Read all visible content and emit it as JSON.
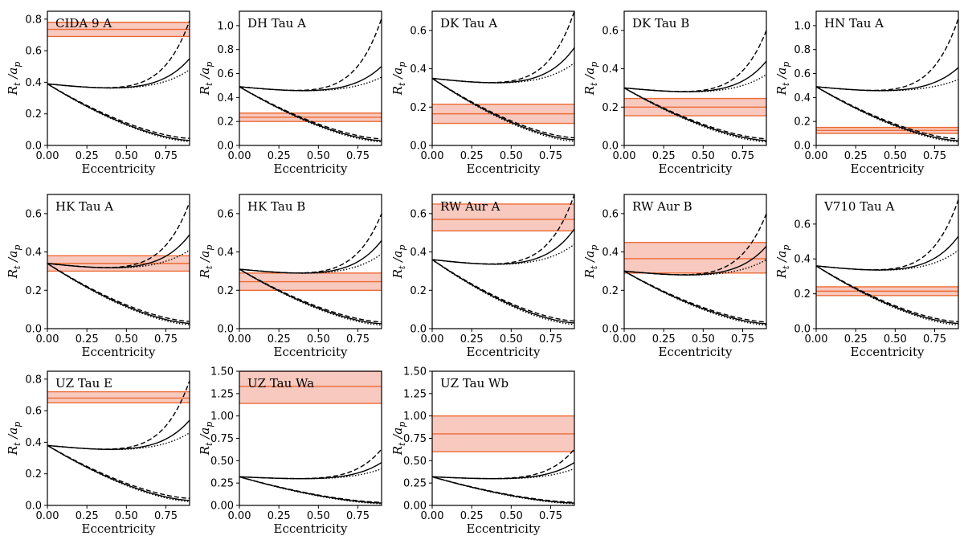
{
  "figure": {
    "xlabel": "Eccentricity",
    "ylabel_main": "R",
    "ylabel_sub1": "t",
    "ylabel_mid": " /a",
    "ylabel_sub2": "p",
    "band_color": "#f7c9bf",
    "band_edge_color": "#ee6a33",
    "curve_color": "#000000"
  },
  "chart_data": [
    {
      "type": "line",
      "title": "CIDA 9 A",
      "xlim": [
        0,
        0.9
      ],
      "ylim": [
        0,
        0.85
      ],
      "xticks": [
        0,
        0.25,
        0.5,
        0.75
      ],
      "xtick_labels": [
        "0.00",
        "0.25",
        "0.50",
        "0.75"
      ],
      "yticks": [
        0,
        0.2,
        0.4,
        0.6,
        0.8
      ],
      "ytick_labels": [
        "0.0",
        "0.2",
        "0.4",
        "0.6",
        "0.8"
      ],
      "r0": 0.39,
      "outer": {
        "dashed": 0.79,
        "solid": 0.55,
        "dotted": 0.48
      },
      "inner": {
        "dashed": 0.045,
        "solid": 0.032,
        "dotted": 0.025
      },
      "band": {
        "lo": 0.69,
        "mid": 0.735,
        "hi": 0.78
      },
      "xlabel": "Eccentricity",
      "ylabel": "R_t /a_p"
    },
    {
      "type": "line",
      "title": "DH Tau A",
      "xlim": [
        0,
        0.9
      ],
      "ylim": [
        0,
        1.12
      ],
      "xticks": [
        0,
        0.25,
        0.5,
        0.75
      ],
      "xtick_labels": [
        "0.00",
        "0.25",
        "0.50",
        "0.75"
      ],
      "yticks": [
        0,
        0.2,
        0.4,
        0.6,
        0.8,
        1.0
      ],
      "ytick_labels": [
        "0.0",
        "0.2",
        "0.4",
        "0.6",
        "0.8",
        "1.0"
      ],
      "r0": 0.49,
      "outer": {
        "dashed": 1.06,
        "solid": 0.66,
        "dotted": 0.57
      },
      "inner": {
        "dashed": 0.055,
        "solid": 0.04,
        "dotted": 0.03
      },
      "band": {
        "lo": 0.2,
        "mid": 0.235,
        "hi": 0.27
      },
      "xlabel": "Eccentricity",
      "ylabel": "R_t /a_p"
    },
    {
      "type": "line",
      "title": "DK Tau A",
      "xlim": [
        0,
        0.9
      ],
      "ylim": [
        0,
        0.7
      ],
      "xticks": [
        0,
        0.25,
        0.5,
        0.75
      ],
      "xtick_labels": [
        "0.00",
        "0.25",
        "0.50",
        "0.75"
      ],
      "yticks": [
        0,
        0.2,
        0.4,
        0.6
      ],
      "ytick_labels": [
        "0.0",
        "0.2",
        "0.4",
        "0.6"
      ],
      "r0": 0.35,
      "outer": {
        "dashed": 0.7,
        "solid": 0.51,
        "dotted": 0.43
      },
      "inner": {
        "dashed": 0.04,
        "solid": 0.03,
        "dotted": 0.022
      },
      "band": {
        "lo": 0.115,
        "mid": 0.165,
        "hi": 0.215
      },
      "xlabel": "Eccentricity",
      "ylabel": "R_t /a_p"
    },
    {
      "type": "line",
      "title": "DK Tau B",
      "xlim": [
        0,
        0.9
      ],
      "ylim": [
        0,
        0.7
      ],
      "xticks": [
        0,
        0.25,
        0.5,
        0.75
      ],
      "xtick_labels": [
        "0.00",
        "0.25",
        "0.50",
        "0.75"
      ],
      "yticks": [
        0,
        0.2,
        0.4,
        0.6
      ],
      "ytick_labels": [
        "0.0",
        "0.2",
        "0.4",
        "0.6"
      ],
      "r0": 0.3,
      "outer": {
        "dashed": 0.6,
        "solid": 0.44,
        "dotted": 0.37
      },
      "inner": {
        "dashed": 0.035,
        "solid": 0.026,
        "dotted": 0.019
      },
      "band": {
        "lo": 0.155,
        "mid": 0.2,
        "hi": 0.245
      },
      "xlabel": "Eccentricity",
      "ylabel": "R_t /a_p"
    },
    {
      "type": "line",
      "title": "HN Tau A",
      "xlim": [
        0,
        0.9
      ],
      "ylim": [
        0,
        1.12
      ],
      "xticks": [
        0,
        0.25,
        0.5,
        0.75
      ],
      "xtick_labels": [
        "0.00",
        "0.25",
        "0.50",
        "0.75"
      ],
      "yticks": [
        0,
        0.2,
        0.4,
        0.6,
        0.8,
        1.0
      ],
      "ytick_labels": [
        "0.0",
        "0.2",
        "0.4",
        "0.6",
        "0.8",
        "1.0"
      ],
      "r0": 0.49,
      "outer": {
        "dashed": 1.06,
        "solid": 0.65,
        "dotted": 0.55
      },
      "inner": {
        "dashed": 0.055,
        "solid": 0.04,
        "dotted": 0.03
      },
      "band": {
        "lo": 0.1,
        "mid": 0.125,
        "hi": 0.15
      },
      "xlabel": "Eccentricity",
      "ylabel": "R_t /a_p"
    },
    {
      "type": "line",
      "title": "HK Tau A",
      "xlim": [
        0,
        0.9
      ],
      "ylim": [
        0,
        0.7
      ],
      "xticks": [
        0,
        0.25,
        0.5,
        0.75
      ],
      "xtick_labels": [
        "0.00",
        "0.25",
        "0.50",
        "0.75"
      ],
      "yticks": [
        0,
        0.2,
        0.4,
        0.6
      ],
      "ytick_labels": [
        "0.0",
        "0.2",
        "0.4",
        "0.6"
      ],
      "r0": 0.34,
      "outer": {
        "dashed": 0.66,
        "solid": 0.49,
        "dotted": 0.41
      },
      "inner": {
        "dashed": 0.038,
        "solid": 0.028,
        "dotted": 0.021
      },
      "band": {
        "lo": 0.3,
        "mid": 0.34,
        "hi": 0.38
      },
      "xlabel": "Eccentricity",
      "ylabel": "R_t /a_p"
    },
    {
      "type": "line",
      "title": "HK Tau B",
      "xlim": [
        0,
        0.9
      ],
      "ylim": [
        0,
        0.7
      ],
      "xticks": [
        0,
        0.25,
        0.5,
        0.75
      ],
      "xtick_labels": [
        "0.00",
        "0.25",
        "0.50",
        "0.75"
      ],
      "yticks": [
        0,
        0.2,
        0.4,
        0.6
      ],
      "ytick_labels": [
        "0.0",
        "0.2",
        "0.4",
        "0.6"
      ],
      "r0": 0.31,
      "outer": {
        "dashed": 0.6,
        "solid": 0.46,
        "dotted": 0.39
      },
      "inner": {
        "dashed": 0.035,
        "solid": 0.026,
        "dotted": 0.019
      },
      "band": {
        "lo": 0.2,
        "mid": 0.245,
        "hi": 0.29
      },
      "xlabel": "Eccentricity",
      "ylabel": "R_t /a_p"
    },
    {
      "type": "line",
      "title": "RW Aur A",
      "xlim": [
        0,
        0.9
      ],
      "ylim": [
        0,
        0.7
      ],
      "xticks": [
        0,
        0.25,
        0.5,
        0.75
      ],
      "xtick_labels": [
        "0.00",
        "0.25",
        "0.50",
        "0.75"
      ],
      "yticks": [
        0,
        0.2,
        0.4,
        0.6
      ],
      "ytick_labels": [
        "0.0",
        "0.2",
        "0.4",
        "0.6"
      ],
      "r0": 0.36,
      "outer": {
        "dashed": 0.7,
        "solid": 0.52,
        "dotted": 0.44
      },
      "inner": {
        "dashed": 0.04,
        "solid": 0.03,
        "dotted": 0.022
      },
      "band": {
        "lo": 0.51,
        "mid": 0.57,
        "hi": 0.65
      },
      "xlabel": "Eccentricity",
      "ylabel": "R_t /a_p"
    },
    {
      "type": "line",
      "title": "RW Aur B",
      "xlim": [
        0,
        0.9
      ],
      "ylim": [
        0,
        0.7
      ],
      "xticks": [
        0,
        0.25,
        0.5,
        0.75
      ],
      "xtick_labels": [
        "0.00",
        "0.25",
        "0.50",
        "0.75"
      ],
      "yticks": [
        0,
        0.2,
        0.4,
        0.6
      ],
      "ytick_labels": [
        "0.0",
        "0.2",
        "0.4",
        "0.6"
      ],
      "r0": 0.3,
      "outer": {
        "dashed": 0.6,
        "solid": 0.43,
        "dotted": 0.36
      },
      "inner": {
        "dashed": 0.035,
        "solid": 0.026,
        "dotted": 0.019
      },
      "band": {
        "lo": 0.29,
        "mid": 0.365,
        "hi": 0.45
      },
      "xlabel": "Eccentricity",
      "ylabel": "R_t /a_p"
    },
    {
      "type": "line",
      "title": "V710 Tau A",
      "xlim": [
        0,
        0.9
      ],
      "ylim": [
        0,
        0.77
      ],
      "xticks": [
        0,
        0.25,
        0.5,
        0.75
      ],
      "xtick_labels": [
        "0.00",
        "0.25",
        "0.50",
        "0.75"
      ],
      "yticks": [
        0,
        0.2,
        0.4,
        0.6
      ],
      "ytick_labels": [
        "0.0",
        "0.2",
        "0.4",
        "0.6"
      ],
      "r0": 0.36,
      "outer": {
        "dashed": 0.74,
        "solid": 0.53,
        "dotted": 0.45
      },
      "inner": {
        "dashed": 0.04,
        "solid": 0.03,
        "dotted": 0.022
      },
      "band": {
        "lo": 0.19,
        "mid": 0.215,
        "hi": 0.24
      },
      "xlabel": "Eccentricity",
      "ylabel": "R_t /a_p"
    },
    {
      "type": "line",
      "title": "UZ Tau E",
      "xlim": [
        0,
        0.9
      ],
      "ylim": [
        0,
        0.85
      ],
      "xticks": [
        0,
        0.25,
        0.5,
        0.75
      ],
      "xtick_labels": [
        "0.00",
        "0.25",
        "0.50",
        "0.75"
      ],
      "yticks": [
        0,
        0.2,
        0.4,
        0.6,
        0.8
      ],
      "ytick_labels": [
        "0.0",
        "0.2",
        "0.4",
        "0.6",
        "0.8"
      ],
      "r0": 0.38,
      "outer": {
        "dashed": 0.79,
        "solid": 0.54,
        "dotted": 0.46
      },
      "inner": {
        "dashed": 0.045,
        "solid": 0.032,
        "dotted": 0.025
      },
      "band": {
        "lo": 0.65,
        "mid": 0.68,
        "hi": 0.72
      },
      "xlabel": "Eccentricity",
      "ylabel": "R_t /a_p"
    },
    {
      "type": "line",
      "title": "UZ Tau Wa",
      "xlim": [
        0,
        0.9
      ],
      "ylim": [
        0,
        1.5
      ],
      "xticks": [
        0,
        0.25,
        0.5,
        0.75
      ],
      "xtick_labels": [
        "0.00",
        "0.25",
        "0.50",
        "0.75"
      ],
      "yticks": [
        0,
        0.25,
        0.5,
        0.75,
        1.0,
        1.25,
        1.5
      ],
      "ytick_labels": [
        "0.00",
        "0.25",
        "0.50",
        "0.75",
        "1.00",
        "1.25",
        "1.50"
      ],
      "r0": 0.32,
      "outer": {
        "dashed": 0.63,
        "solid": 0.48,
        "dotted": 0.41
      },
      "inner": {
        "dashed": 0.035,
        "solid": 0.027,
        "dotted": 0.02
      },
      "band": {
        "lo": 1.14,
        "mid": 1.33,
        "hi": 1.5
      },
      "xlabel": "Eccentricity",
      "ylabel": "R_t /a_p"
    },
    {
      "type": "line",
      "title": "UZ Tau Wb",
      "xlim": [
        0,
        0.9
      ],
      "ylim": [
        0,
        1.5
      ],
      "xticks": [
        0,
        0.25,
        0.5,
        0.75
      ],
      "xtick_labels": [
        "0.00",
        "0.25",
        "0.50",
        "0.75"
      ],
      "yticks": [
        0,
        0.25,
        0.5,
        0.75,
        1.0,
        1.25,
        1.5
      ],
      "ytick_labels": [
        "0.00",
        "0.25",
        "0.50",
        "0.75",
        "1.00",
        "1.25",
        "1.50"
      ],
      "r0": 0.32,
      "outer": {
        "dashed": 0.63,
        "solid": 0.48,
        "dotted": 0.41
      },
      "inner": {
        "dashed": 0.035,
        "solid": 0.027,
        "dotted": 0.02
      },
      "band": {
        "lo": 0.6,
        "mid": 0.8,
        "hi": 1.0
      },
      "xlabel": "Eccentricity",
      "ylabel": "R_t /a_p"
    }
  ]
}
